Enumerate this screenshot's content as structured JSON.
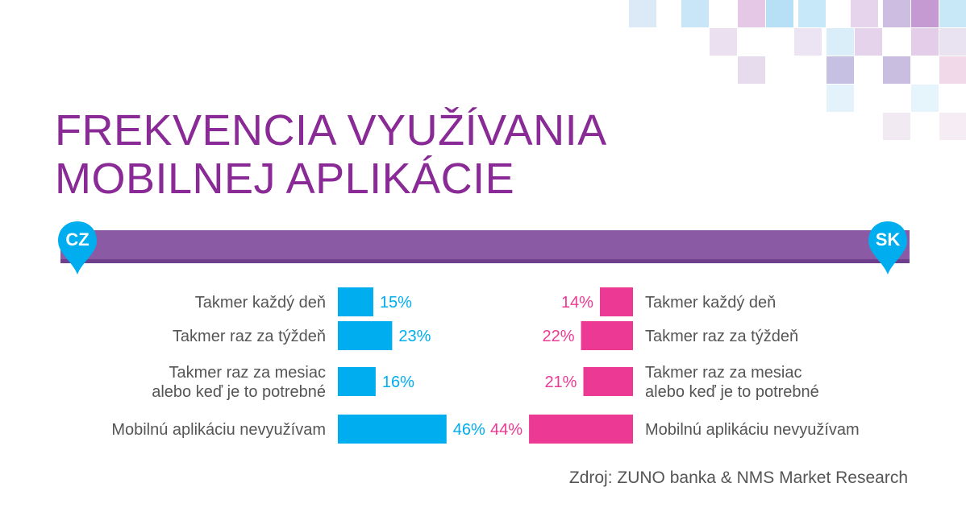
{
  "title": {
    "line1": "FREKVENCIA VYUŽÍVANIA",
    "line2": "MOBILNEJ APLIKÁCIE"
  },
  "markers": {
    "left": "CZ",
    "right": "SK"
  },
  "source": "Zdroj: ZUNO banka & NMS Market Research",
  "colors": {
    "title": "#8a2a96",
    "timeline": "#8a5aa4",
    "cz": "#00adef",
    "sk": "#ec3a94",
    "text": "#555555"
  },
  "chart_data": {
    "type": "bar",
    "orientation": "horizontal-diverging",
    "categories": [
      [
        "Takmer každý deň"
      ],
      [
        "Takmer raz za týždeň"
      ],
      [
        "Takmer raz za mesiac",
        "alebo keď je to potrebné"
      ],
      [
        "Mobilnú aplikáciu nevyužívam"
      ]
    ],
    "series": [
      {
        "name": "CZ",
        "values": [
          15,
          23,
          16,
          46
        ],
        "labels": [
          "15%",
          "23%",
          "16%",
          "46%"
        ],
        "color": "#00adef"
      },
      {
        "name": "SK",
        "values": [
          14,
          22,
          21,
          44
        ],
        "labels": [
          "14%",
          "22%",
          "21%",
          "44%"
        ],
        "color": "#ec3a94"
      }
    ],
    "unit": "%"
  }
}
